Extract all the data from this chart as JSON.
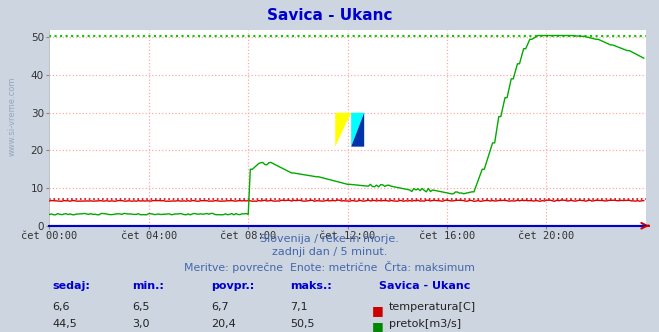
{
  "title": "Savica - Ukanc",
  "title_color": "#0000cc",
  "bg_color": "#cdd5e0",
  "plot_bg_color": "#ffffff",
  "xlabel_ticks": [
    "čet 00:00",
    "čet 04:00",
    "čet 08:00",
    "čet 12:00",
    "čet 16:00",
    "čet 20:00"
  ],
  "ylabel_ticks": [
    0,
    10,
    20,
    30,
    40,
    50
  ],
  "ylim": [
    0,
    52
  ],
  "xlim": [
    0,
    288
  ],
  "subtitle_lines": [
    "Slovenija / reke in morje.",
    "zadnji dan / 5 minut.",
    "Meritve: povrečne  Enote: metrične  Črta: maksimum"
  ],
  "subtitle_color": "#4466aa",
  "table_headers": [
    "sedaj:",
    "min.:",
    "povpr.:",
    "maks.:"
  ],
  "table_header_color": "#0000cc",
  "station_label": "Savica - Ukanc",
  "row1_values": [
    "6,6",
    "6,5",
    "6,7",
    "7,1"
  ],
  "row2_values": [
    "44,5",
    "3,0",
    "20,4",
    "50,5"
  ],
  "row1_label": "temperatura[C]",
  "row2_label": "pretok[m3/s]",
  "row1_color": "#cc0000",
  "row2_color": "#008800",
  "temp_color": "#dd0000",
  "flow_color": "#00aa00",
  "temp_max_val": 7.1,
  "flow_max_val": 50.5,
  "temp_max_color": "#dd0000",
  "flow_max_color": "#00cc00",
  "watermark_color": "#8899bb",
  "side_watermark": "www.si-vreme.com"
}
